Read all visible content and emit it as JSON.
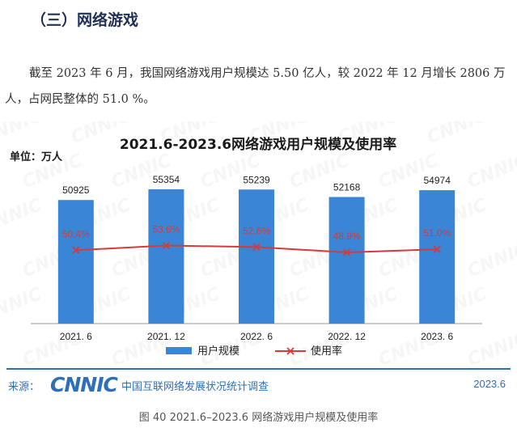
{
  "heading": "（三）网络游戏",
  "paragraph": "截至 2023 年 6 月，我国网络游戏用户规模达 5.50 亿人，较 2022 年 12 月增长 2806 万人，占网民整体的 51.0 %。",
  "chart_data": {
    "type": "bar",
    "title": "2021.6-2023.6网络游戏用户规模及使用率",
    "unit_label": "单位：万人",
    "categories": [
      "2021. 6",
      "2021. 12",
      "2022. 6",
      "2022. 12",
      "2023. 6"
    ],
    "series": [
      {
        "name": "用户规模",
        "type": "bar",
        "values": [
          50925,
          55354,
          55239,
          52168,
          54974
        ],
        "labels": [
          "50925",
          "55354",
          "55239",
          "52168",
          "54974"
        ],
        "color": "#3a85d6"
      },
      {
        "name": "使用率",
        "type": "line",
        "values": [
          50.4,
          53.6,
          52.6,
          48.9,
          51.0
        ],
        "labels": [
          "50.4%",
          "53.6%",
          "52.6%",
          "48.9%",
          "51.0%"
        ],
        "color": "#d63a3a"
      }
    ],
    "ylim_bar": [
      0,
      60000
    ],
    "ylim_line": [
      0,
      100
    ],
    "legend": "bottom",
    "watermark": "CNNIC"
  },
  "footer": {
    "source_label": "来源：",
    "logo_text": "CNNIC",
    "org": "中国互联网络发展状况统计调查",
    "date": "2023.6"
  },
  "caption": "图 40  2021.6–2023.6 网络游戏用户规模及使用率"
}
